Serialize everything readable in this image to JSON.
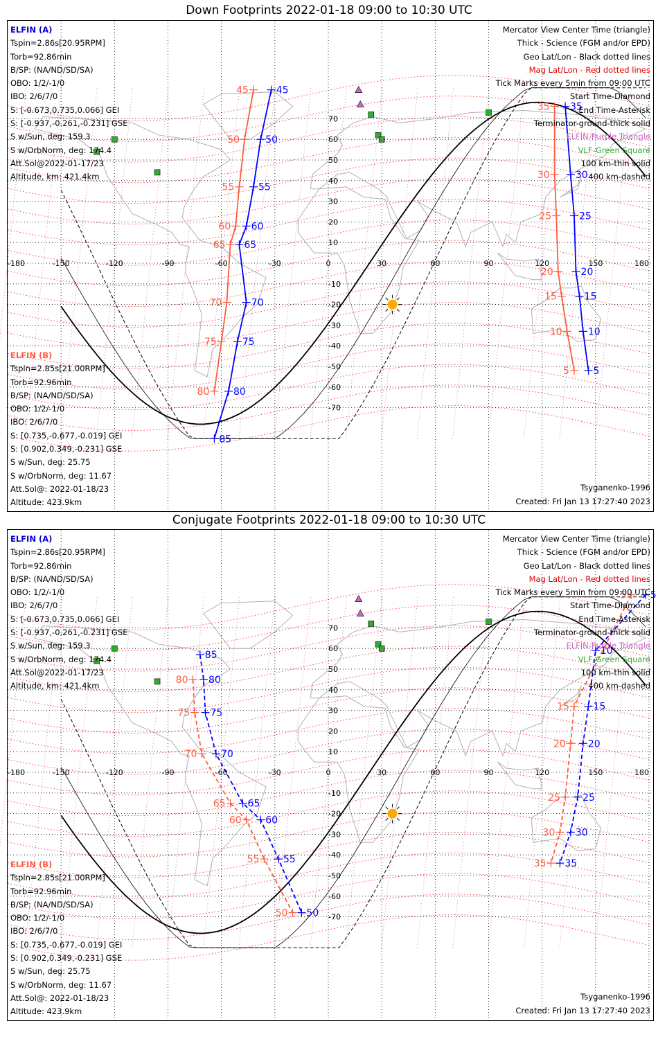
{
  "panels": [
    {
      "title": "Down Footprints 2022-01-18 09:00 to 10:30 UTC",
      "elfin_a": {
        "name": "ELFIN (A)",
        "lines": [
          "Tspin=2.86s[20.95RPM]",
          "Torb=92.86min",
          "B/SP: (NA/ND/SD/SA)",
          "OBO: 1/2/-1/0",
          "IBO: 2/6/7/0",
          "S: [-0.673,0.735,0.066] GEI",
          "S: [-0.937,-0.261,-0.231] GSE",
          "S w/Sun, deg: 159.3",
          "S w/OrbNorm, deg: 174.4",
          "Att.Sol@2022-01-17/23",
          "Altitude, km: 421.4km"
        ]
      },
      "elfin_b": {
        "name": "ELFIN (B)",
        "lines": [
          "Tspin=2.85s[21.00RPM]",
          "Torb=92.96min",
          "B/SP: (NA/ND/SD/SA)",
          "OBO: 1/2/-1/0",
          "IBO: 2/6/7/0",
          "S: [0.735,-0.677,-0.019] GEI",
          "S: [0.902,0.349,-0.231] GSE",
          "S w/Sun, deg: 25.75",
          "S w/OrbNorm, deg: 11.67",
          "Att.Sol@: 2022-01-18/23",
          "Altitude: 423.9km"
        ]
      },
      "legend": [
        "Mercator View Center Time (triangle)",
        "Thick - Science (FGM and/or EPD)",
        "Geo Lat/Lon - Black dotted lines",
        "Mag Lat/Lon - Red dotted lines",
        "Tick Marks every 5min from 09:00 UTC",
        "Start Time-Diamond",
        "End Time-Asterisk",
        "Terminator-ground-thick solid",
        "ELFIN-Purple Triangle",
        "VLF-Green Square",
        "100 km-thin solid",
        "400 km-dashed"
      ],
      "model": "Tsyganenko-1996",
      "created": "Created: Fri Jan 13 17:27:40 2023",
      "ticks_a": [
        {
          "t": "45",
          "lon": -32,
          "lat": 84
        },
        {
          "t": "50",
          "lon": -38,
          "lat": 60
        },
        {
          "t": "55",
          "lon": -42,
          "lat": 37
        },
        {
          "t": "60",
          "lon": -46,
          "lat": 18
        },
        {
          "t": "65",
          "lon": -50,
          "lat": 9
        },
        {
          "t": "70",
          "lon": -46,
          "lat": -19
        },
        {
          "t": "75",
          "lon": -51,
          "lat": -38
        },
        {
          "t": "80",
          "lon": -56,
          "lat": -62
        },
        {
          "t": "85",
          "lon": -64,
          "lat": -85
        },
        {
          "t": "35",
          "lon": 133,
          "lat": 76
        },
        {
          "t": "30",
          "lon": 136,
          "lat": 43
        },
        {
          "t": "25",
          "lon": 138,
          "lat": 23
        },
        {
          "t": "20",
          "lon": 139,
          "lat": -4
        },
        {
          "t": "15",
          "lon": 141,
          "lat": -16
        },
        {
          "t": "10",
          "lon": 143,
          "lat": -33
        },
        {
          "t": "5",
          "lon": 146,
          "lat": -52
        }
      ],
      "ticks_b": [
        {
          "t": "45",
          "lon": -42,
          "lat": 84
        },
        {
          "t": "50",
          "lon": -47,
          "lat": 60
        },
        {
          "t": "55",
          "lon": -50,
          "lat": 37
        },
        {
          "t": "60",
          "lon": -52,
          "lat": 18
        },
        {
          "t": "65",
          "lon": -55,
          "lat": 9
        },
        {
          "t": "70",
          "lon": -57,
          "lat": -19
        },
        {
          "t": "75",
          "lon": -60,
          "lat": -38
        },
        {
          "t": "80",
          "lon": -64,
          "lat": -62
        },
        {
          "t": "35",
          "lon": 127,
          "lat": 76
        },
        {
          "t": "30",
          "lon": 127,
          "lat": 43
        },
        {
          "t": "25",
          "lon": 128,
          "lat": 23
        },
        {
          "t": "20",
          "lon": 129,
          "lat": -4
        },
        {
          "t": "15",
          "lon": 131,
          "lat": -16
        },
        {
          "t": "10",
          "lon": 134,
          "lat": -33
        },
        {
          "t": "5",
          "lon": 138,
          "lat": -52
        }
      ]
    },
    {
      "title": "Conjugate Footprints 2022-01-18 09:00 to 10:30 UTC",
      "elfin_a": {
        "name": "ELFIN (A)",
        "lines": [
          "Tspin=2.86s[20.95RPM]",
          "Torb=92.86min",
          "B/SP: (NA/ND/SD/SA)",
          "OBO: 1/2/-1/0",
          "IBO: 2/6/7/0",
          "S: [-0.673,0.735,0.066] GEI",
          "S: [-0.937,-0.261,-0.231] GSE",
          "S w/Sun, deg: 159.3",
          "S w/OrbNorm, deg: 174.4",
          "Att.Sol@2022-01-17/23",
          "Altitude, km: 421.4km"
        ]
      },
      "elfin_b": {
        "name": "ELFIN (B)",
        "lines": [
          "Tspin=2.85s[21.00RPM]",
          "Torb=92.96min",
          "B/SP: (NA/ND/SD/SA)",
          "OBO: 1/2/-1/0",
          "IBO: 2/6/7/0",
          "S: [0.735,-0.677,-0.019] GEI",
          "S: [0.902,0.349,-0.231] GSE",
          "S w/Sun, deg: 25.75",
          "S w/OrbNorm, deg: 11.67",
          "Att.Sol@: 2022-01-18/23",
          "Altitude: 423.9km"
        ]
      },
      "legend": [
        "Mercator View Center Time (triangle)",
        "Thick - Science (FGM and/or EPD)",
        "Geo Lat/Lon - Black dotted lines",
        "Mag Lat/Lon - Red dotted lines",
        "Tick Marks every 5min from 09:00 UTC",
        "Start Time-Diamond",
        "End Time-Asterisk",
        "Terminator-ground-thick solid",
        "ELFIN-Purple Triangle",
        "VLF-Green Square",
        "100 km-thin solid",
        "400 km-dashed"
      ],
      "model": "Tsyganenko-1996",
      "created": "Created: Fri Jan 13 17:27:40 2023",
      "ticks_a": [
        {
          "t": "85",
          "lon": -72,
          "lat": 57
        },
        {
          "t": "80",
          "lon": -70,
          "lat": 45
        },
        {
          "t": "75",
          "lon": -69,
          "lat": 29
        },
        {
          "t": "70",
          "lon": -63,
          "lat": 9
        },
        {
          "t": "65",
          "lon": -48,
          "lat": -15
        },
        {
          "t": "60",
          "lon": -38,
          "lat": -23
        },
        {
          "t": "55",
          "lon": -28,
          "lat": -42
        },
        {
          "t": "50",
          "lon": -15,
          "lat": -68
        },
        {
          "t": "5",
          "lon": 178,
          "lat": 86
        },
        {
          "t": "10",
          "lon": 150,
          "lat": 59
        },
        {
          "t": "15",
          "lon": 146,
          "lat": 32
        },
        {
          "t": "20",
          "lon": 143,
          "lat": 14
        },
        {
          "t": "25",
          "lon": 140,
          "lat": -12
        },
        {
          "t": "30",
          "lon": 136,
          "lat": -29
        },
        {
          "t": "35",
          "lon": 130,
          "lat": -44
        }
      ],
      "ticks_b": [
        {
          "t": "80",
          "lon": -76,
          "lat": 45
        },
        {
          "t": "75",
          "lon": -75,
          "lat": 29
        },
        {
          "t": "70",
          "lon": -71,
          "lat": 9
        },
        {
          "t": "65",
          "lon": -55,
          "lat": -15
        },
        {
          "t": "60",
          "lon": -46,
          "lat": -23
        },
        {
          "t": "55",
          "lon": -36,
          "lat": -42
        },
        {
          "t": "50",
          "lon": -20,
          "lat": -68
        },
        {
          "t": "5",
          "lon": 170,
          "lat": 86
        },
        {
          "t": "15",
          "lon": 138,
          "lat": 32
        },
        {
          "t": "20",
          "lon": 136,
          "lat": 14
        },
        {
          "t": "25",
          "lon": 133,
          "lat": -12
        },
        {
          "t": "30",
          "lon": 130,
          "lat": -29
        },
        {
          "t": "35",
          "lon": 125,
          "lat": -44
        }
      ]
    }
  ],
  "lon_ticks": [
    "-180",
    "-150",
    "-120",
    "-90",
    "-60",
    "-30",
    "0",
    "30",
    "60",
    "90",
    "120",
    "150",
    "180"
  ],
  "lat_ticks": [
    "70",
    "60",
    "50",
    "40",
    "30",
    "20",
    "10",
    "-10",
    "-20",
    "-30",
    "-40",
    "-50",
    "-60",
    "-70"
  ],
  "colors": {
    "elfin_a": "#0000ff",
    "elfin_b": "#ff5a3c",
    "mag_grid": "#ff3333",
    "geo_grid": "#000000",
    "vlf": "#33aa33",
    "elfin_marker": "#cc66cc",
    "sun": "#ffaa00",
    "coast": "#b0b0b0"
  }
}
